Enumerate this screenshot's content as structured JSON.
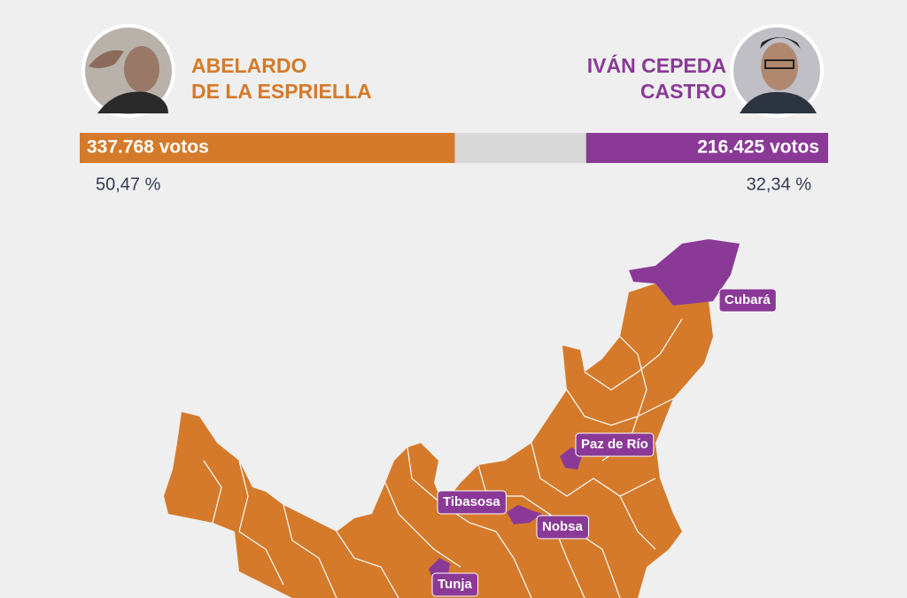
{
  "candidates": [
    {
      "name_lines": [
        "ABELARDO",
        "DE LA ESPRIELLA"
      ],
      "votes": 337768,
      "votes_label": "337.768 votos",
      "percent": 50.47,
      "percent_label": "50,47 %",
      "color": "#d57a2a"
    },
    {
      "name_lines": [
        "IVÁN CEPEDA",
        "CASTRO"
      ],
      "votes": 216425,
      "votes_label": "216.425 votos",
      "percent": 32.34,
      "percent_label": "32,34 %",
      "color": "#8a3a96"
    }
  ],
  "map": {
    "labels": [
      "Cubará",
      "Paz de Río",
      "Tibasosa",
      "Nobsa",
      "Tunja"
    ]
  }
}
